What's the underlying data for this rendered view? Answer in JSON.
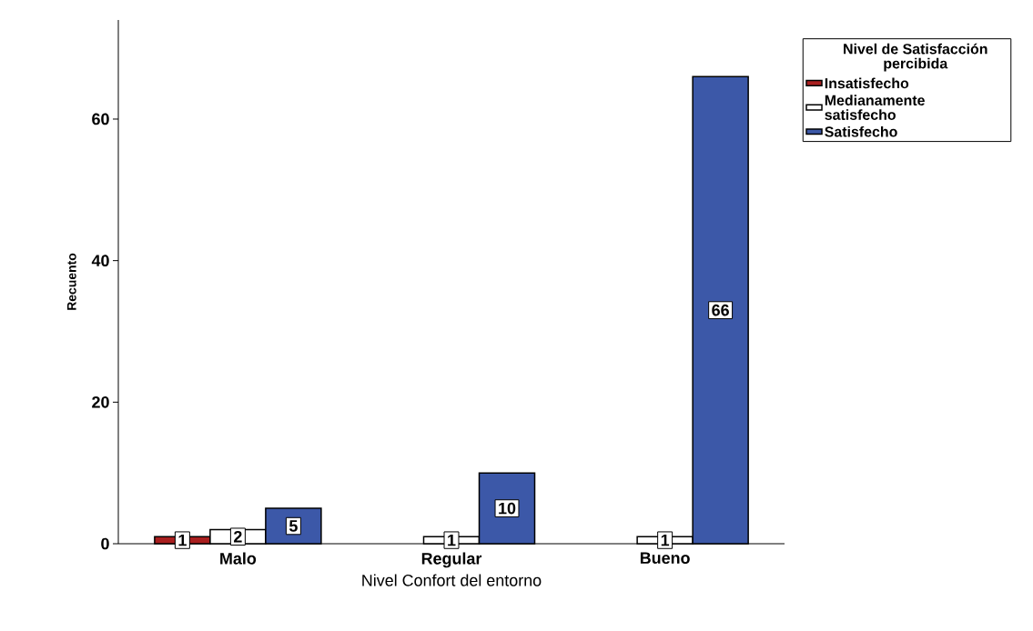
{
  "chart_data": {
    "type": "bar",
    "xlabel": "Nivel Confort del entorno",
    "ylabel": "Recuento",
    "legend_title": "Nivel de Satisfacción percibida",
    "categories": [
      "Malo",
      "Regular",
      "Bueno"
    ],
    "series": [
      {
        "name": "Insatisfecho",
        "color": "#a91f1f",
        "values": [
          1,
          null,
          null
        ],
        "value_labels": [
          "1",
          null,
          null
        ]
      },
      {
        "name": "Medianamente satisfecho",
        "color": "#ffffff",
        "values": [
          2,
          1,
          1
        ],
        "value_labels": [
          "2",
          "1",
          "1"
        ]
      },
      {
        "name": "Satisfecho",
        "color": "#3c58a8",
        "values": [
          5,
          10,
          66
        ],
        "value_labels": [
          "5",
          "10",
          "66"
        ]
      }
    ],
    "ylim": [
      0,
      74
    ],
    "yticks": [
      0,
      20,
      40,
      60
    ],
    "legend": "top right"
  }
}
